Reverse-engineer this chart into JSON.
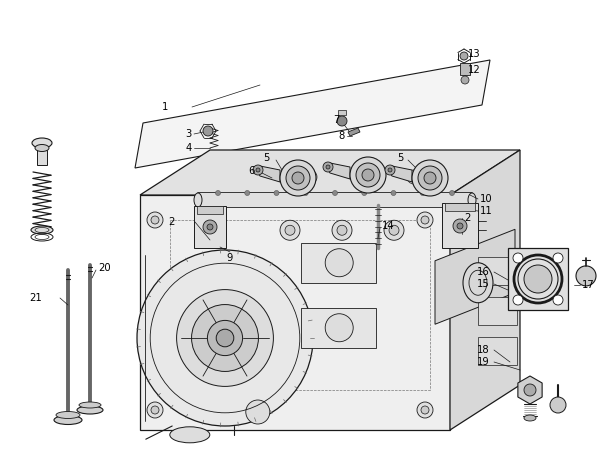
{
  "bg_color": "#ffffff",
  "lc": "#1a1a1a",
  "lw": 0.7,
  "label_fs": 7.0,
  "gray1": "#cccccc",
  "gray2": "#e8e8e8",
  "gray3": "#aaaaaa",
  "gray4": "#888888",
  "gray5": "#555555"
}
